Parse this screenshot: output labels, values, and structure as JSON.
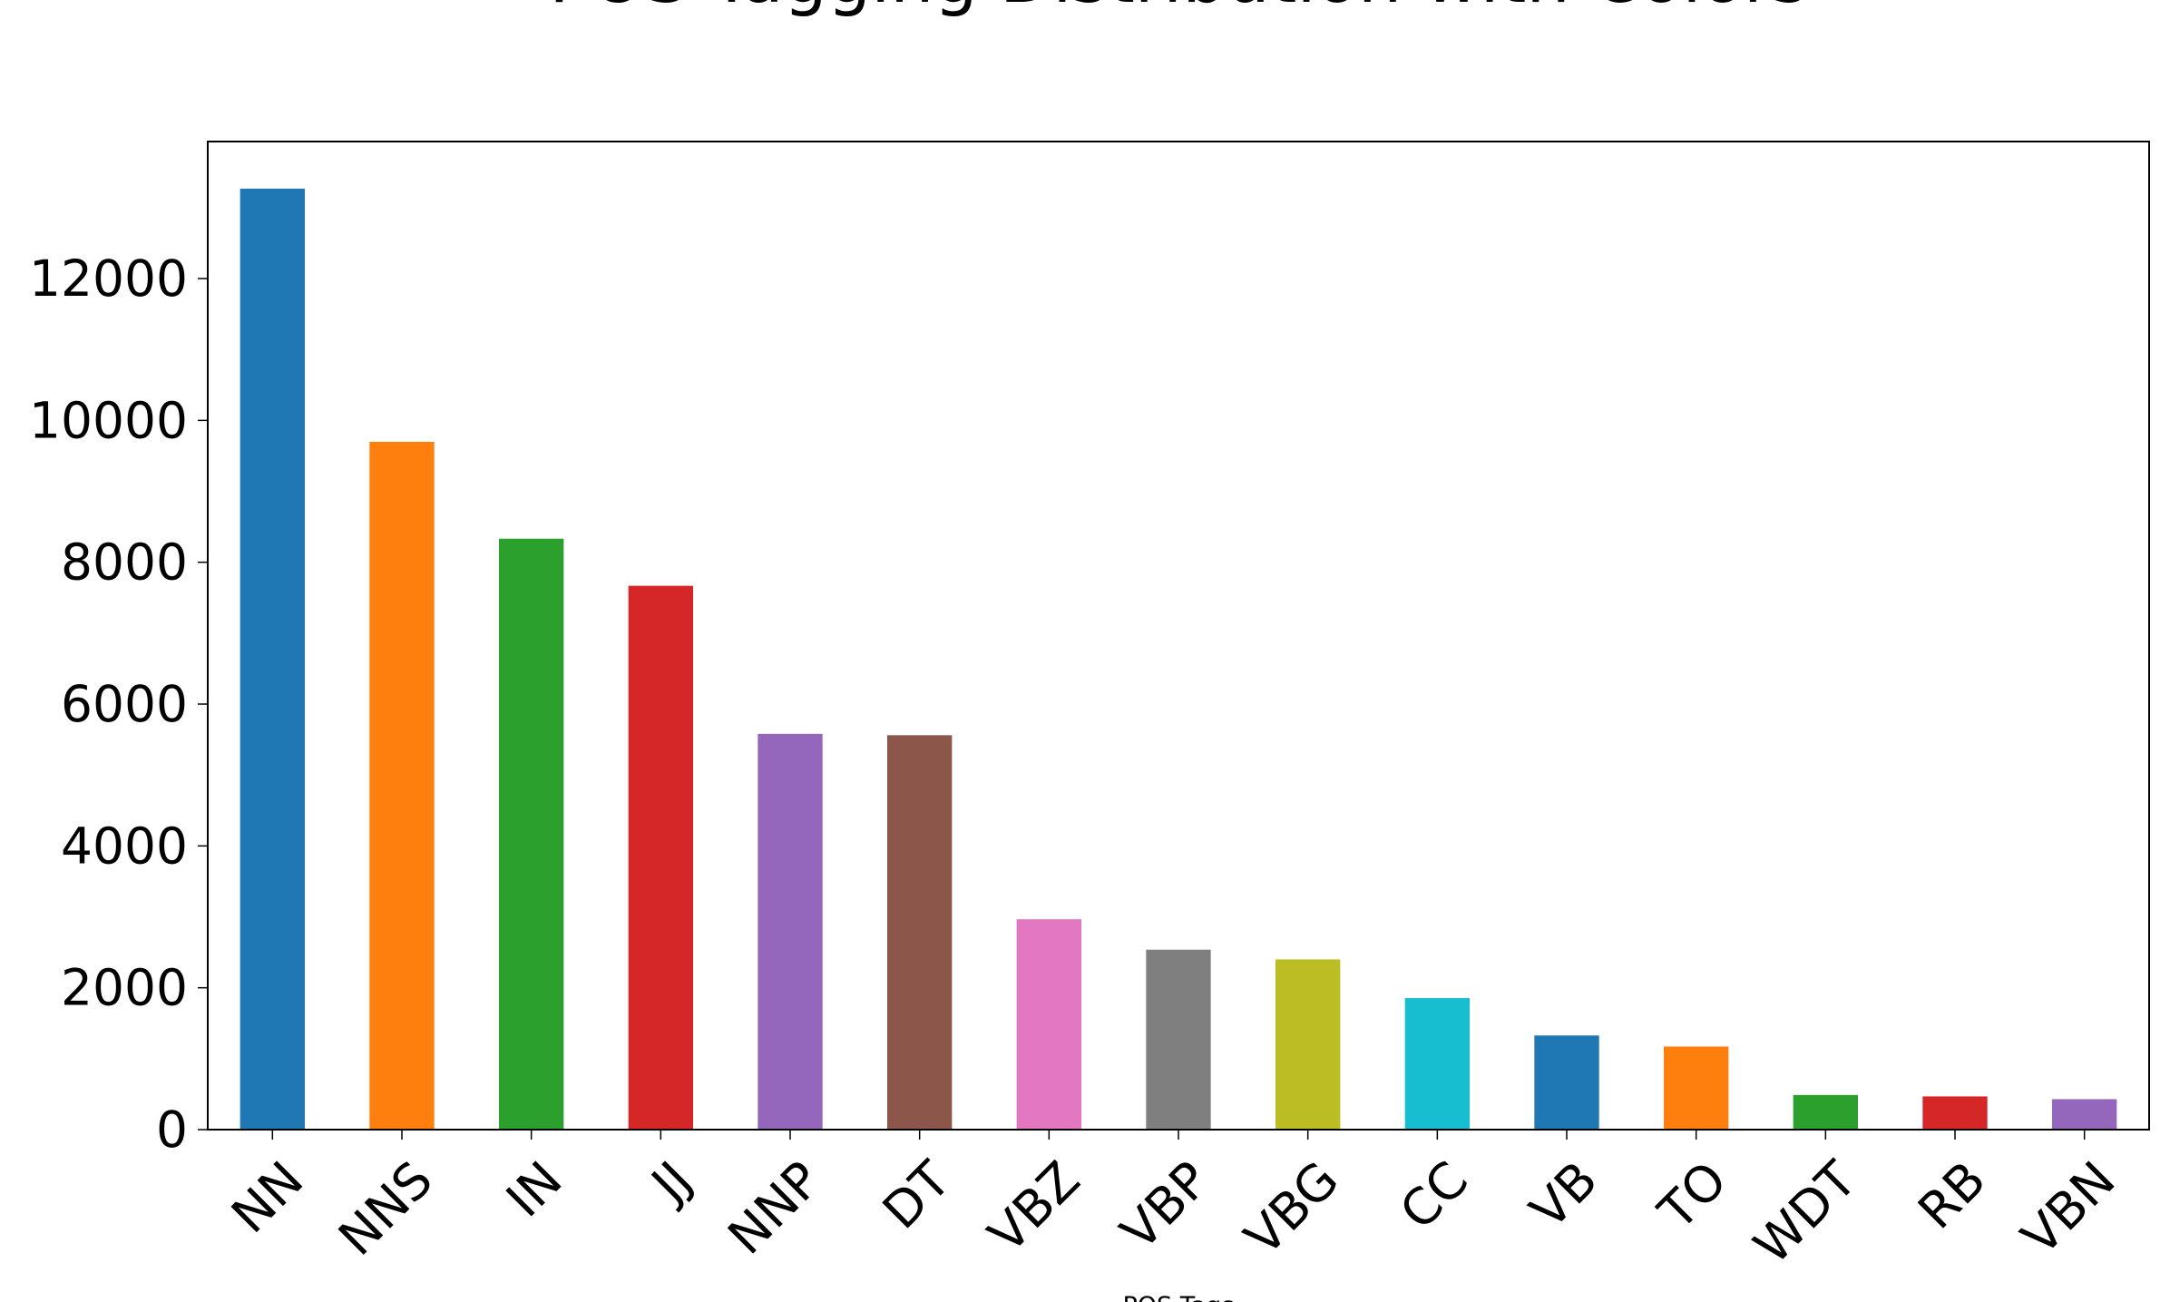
{
  "chart_data": {
    "type": "bar",
    "title": "POS Tagging Distribution with Colors",
    "x_label": "POS Tags",
    "categories": [
      "NN",
      "NNS",
      "IN",
      "JJ",
      "NNP",
      "DT",
      "VBZ",
      "VBP",
      "VBG",
      "CC",
      "VB",
      "TO",
      "WDT",
      "RB",
      "VBN"
    ],
    "values": [
      13268,
      9698,
      8332,
      7668,
      5580,
      5561,
      2966,
      2537,
      2400,
      1854,
      1327,
      1171,
      488,
      468,
      429
    ],
    "colors": [
      "#1f77b4",
      "#ff7f0e",
      "#2ca02c",
      "#d62728",
      "#9467bd",
      "#8c564b",
      "#e377c2",
      "#7f7f7f",
      "#bcbd22",
      "#17becf",
      "#1f77b4",
      "#ff7f0e",
      "#2ca02c",
      "#d62728",
      "#9467bd"
    ],
    "ylim": [
      0,
      13932
    ],
    "yticks": [
      0,
      2000,
      4000,
      6000,
      8000,
      10000,
      12000
    ]
  }
}
